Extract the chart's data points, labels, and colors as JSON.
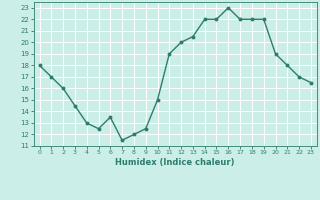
{
  "x": [
    0,
    1,
    2,
    3,
    4,
    5,
    6,
    7,
    8,
    9,
    10,
    11,
    12,
    13,
    14,
    15,
    16,
    17,
    18,
    19,
    20,
    21,
    22,
    23
  ],
  "y": [
    18,
    17,
    16,
    14.5,
    13,
    12.5,
    13.5,
    11.5,
    12,
    12.5,
    15,
    19,
    20,
    20.5,
    22,
    22,
    23,
    22,
    22,
    22,
    19,
    18,
    17,
    16.5
  ],
  "line_color": "#2d7d6e",
  "marker": "o",
  "marker_size": 1.8,
  "linewidth": 1.0,
  "xlabel": "Humidex (Indice chaleur)",
  "xlim": [
    -0.5,
    23.5
  ],
  "ylim": [
    11,
    23.5
  ],
  "yticks": [
    11,
    12,
    13,
    14,
    15,
    16,
    17,
    18,
    19,
    20,
    21,
    22,
    23
  ],
  "xticks": [
    0,
    1,
    2,
    3,
    4,
    5,
    6,
    7,
    8,
    9,
    10,
    11,
    12,
    13,
    14,
    15,
    16,
    17,
    18,
    19,
    20,
    21,
    22,
    23
  ],
  "bg_color": "#cceee8",
  "grid_color": "#ffffff",
  "tick_color": "#2d7d6e",
  "label_color": "#2d7d6e"
}
